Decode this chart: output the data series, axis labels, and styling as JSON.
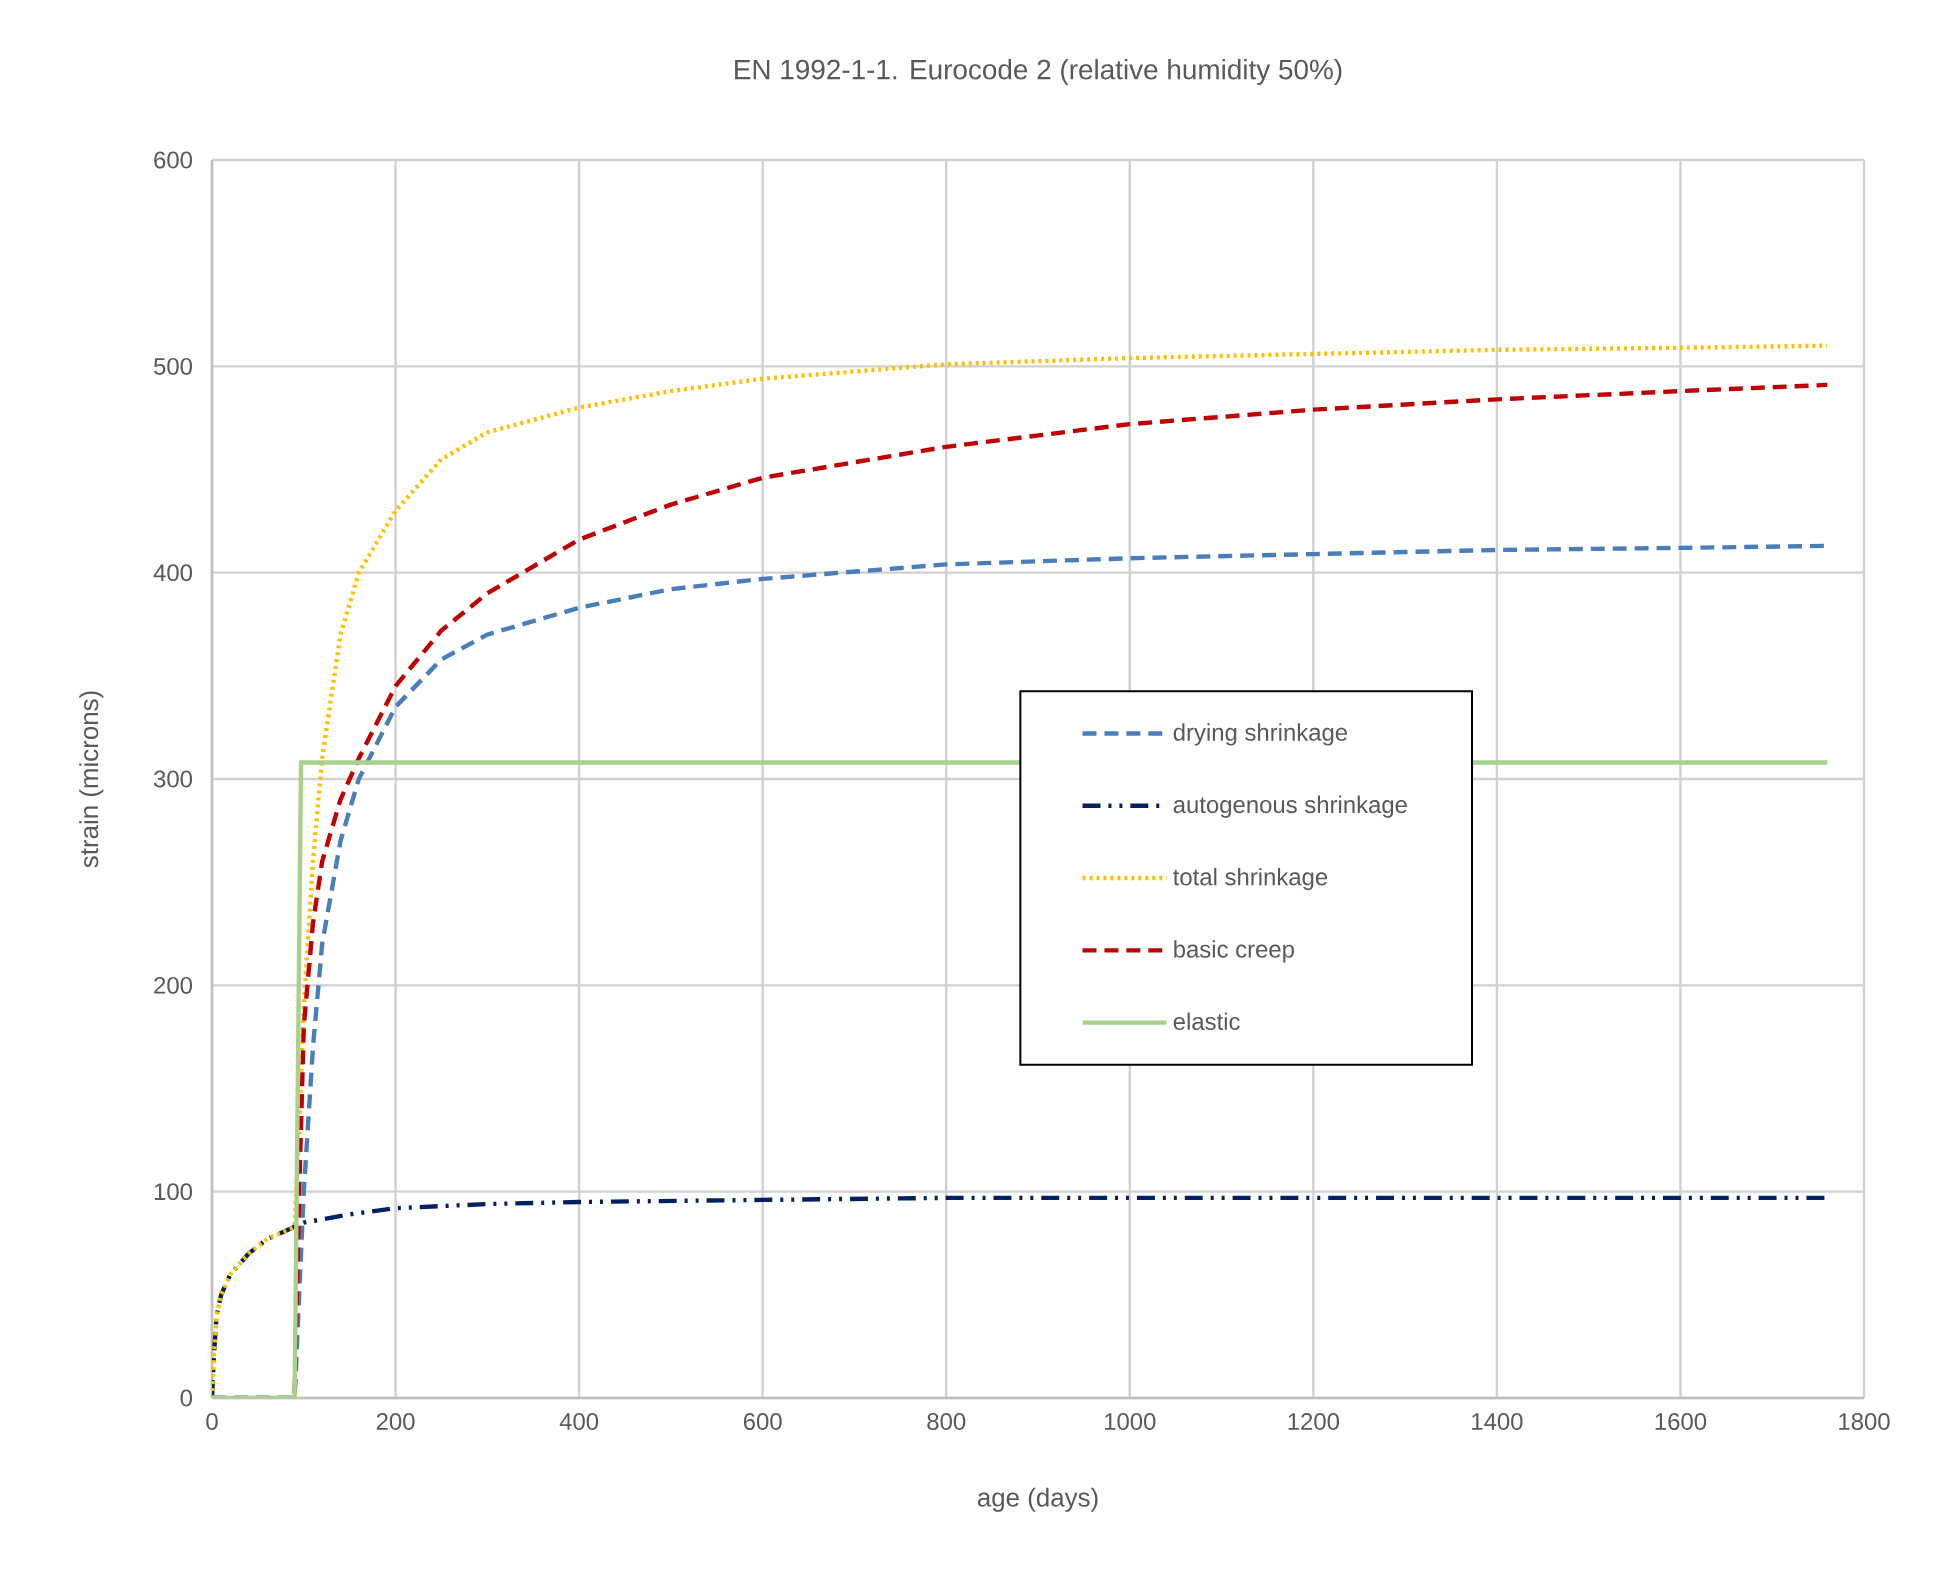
{
  "chart_data": {
    "type": "line",
    "title": "EN 1992-1-1. Eurocode 2 (relative humidity 50%)",
    "xlabel": "age (days)",
    "ylabel": "strain (microns)",
    "xlim": [
      0,
      1800
    ],
    "ylim": [
      0,
      600
    ],
    "xticks": [
      0,
      200,
      400,
      600,
      800,
      1000,
      1200,
      1400,
      1600,
      1800
    ],
    "yticks": [
      0,
      100,
      200,
      300,
      400,
      500,
      600
    ],
    "grid": true,
    "legend": "right",
    "series": [
      {
        "name": "drying shrinkage",
        "color": "#4a7ebb",
        "line_style": "dashed",
        "x": [
          0,
          90,
          95,
          100,
          110,
          120,
          140,
          160,
          200,
          250,
          300,
          400,
          500,
          600,
          800,
          1000,
          1200,
          1400,
          1600,
          1760
        ],
        "values": [
          0,
          0,
          50,
          100,
          170,
          220,
          270,
          300,
          335,
          358,
          370,
          383,
          392,
          397,
          404,
          407,
          409,
          411,
          412,
          413
        ]
      },
      {
        "name": "autogenous shrinkage",
        "color": "#002060",
        "line_style": "dashdotdotted",
        "x": [
          0,
          2,
          5,
          10,
          20,
          40,
          60,
          90,
          100,
          150,
          200,
          300,
          400,
          600,
          800,
          1000,
          1200,
          1400,
          1600,
          1760
        ],
        "values": [
          0,
          20,
          40,
          50,
          60,
          70,
          77,
          83,
          85,
          89,
          92,
          94,
          95,
          96,
          97,
          97,
          97,
          97,
          97,
          97
        ]
      },
      {
        "name": "total shrinkage",
        "color": "#ffc000",
        "line_style": "dotted",
        "x": [
          0,
          2,
          5,
          10,
          20,
          40,
          60,
          90,
          95,
          100,
          110,
          120,
          140,
          160,
          200,
          250,
          300,
          400,
          500,
          600,
          800,
          1000,
          1200,
          1400,
          1600,
          1760
        ],
        "values": [
          0,
          20,
          40,
          50,
          60,
          70,
          77,
          83,
          130,
          190,
          260,
          310,
          370,
          400,
          430,
          455,
          468,
          480,
          488,
          494,
          501,
          504,
          506,
          508,
          509,
          510
        ]
      },
      {
        "name": "basic creep",
        "color": "#c00000",
        "line_style": "dashed",
        "x": [
          0,
          90,
          95,
          100,
          110,
          120,
          140,
          160,
          200,
          250,
          300,
          400,
          500,
          600,
          800,
          1000,
          1200,
          1400,
          1600,
          1760
        ],
        "values": [
          0,
          0,
          100,
          180,
          230,
          260,
          290,
          310,
          345,
          372,
          390,
          416,
          433,
          446,
          461,
          472,
          479,
          484,
          488,
          491
        ]
      },
      {
        "name": "elastic",
        "color": "#a9d18e",
        "line_style": "solid",
        "x": [
          0,
          90,
          97,
          1760
        ],
        "values": [
          0,
          0,
          308,
          308
        ]
      }
    ]
  }
}
